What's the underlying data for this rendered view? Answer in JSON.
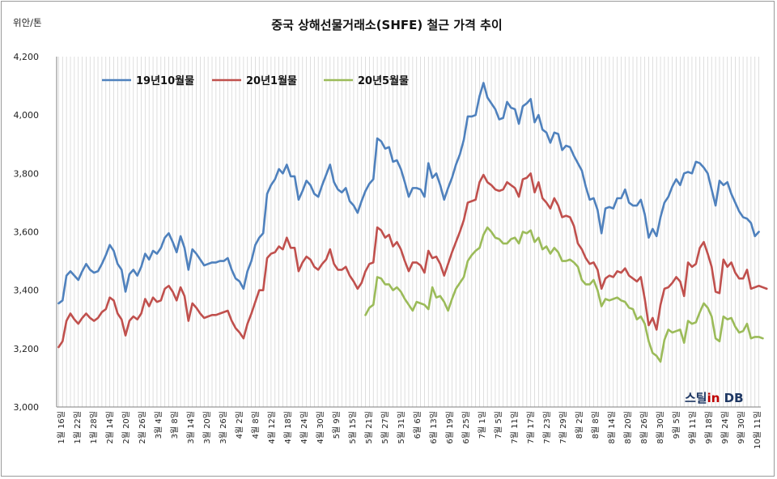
{
  "chart_data": {
    "type": "line",
    "title": "중국 상해선물거래소(SHFE) 철근 가격 추이",
    "unit_label": "위안/톤",
    "ylim": [
      3000,
      4200
    ],
    "yticks": [
      3000,
      3200,
      3400,
      3600,
      3800,
      4000,
      4200
    ],
    "ytick_labels": [
      "3,000",
      "3,200",
      "3,400",
      "3,600",
      "3,800",
      "4,000",
      "4,200"
    ],
    "grid": "vertical lines at every data point",
    "legend_position": "top-left",
    "colors": {
      "s1": "#4f81bd",
      "s2": "#c0504d",
      "s3": "#9bbb59"
    },
    "x_tick_labels": [
      "1월 16일",
      "1월 22일",
      "1월 28일",
      "2월 14일",
      "2월 20일",
      "2월 26일",
      "3월 4일",
      "3월 8일",
      "3월 14일",
      "3월 20일",
      "3월 26일",
      "4월 2일",
      "4월 8일",
      "4월 12일",
      "4월 18일",
      "4월 24일",
      "4월 30일",
      "5월 9일",
      "5월 15일",
      "5월 21일",
      "5월 27일",
      "5월 31일",
      "6월 6일",
      "6월 13일",
      "6월 19일",
      "6월 25일",
      "7월 1일",
      "7월 5일",
      "7월 11일",
      "7월 17일",
      "7월 23일",
      "7월 29일",
      "8월 2일",
      "8월 8일",
      "8월 14일",
      "8월 20일",
      "8월 26일",
      "8월 30일",
      "9월 5일",
      "9월 11일",
      "9월 18일",
      "9월 24일",
      "9월 30일",
      "10월 11일"
    ],
    "series": [
      {
        "name": "19년10월물",
        "values": [
          3355,
          3365,
          3450,
          3465,
          3450,
          3435,
          3465,
          3490,
          3470,
          3460,
          3465,
          3490,
          3520,
          3555,
          3535,
          3490,
          3470,
          3395,
          3455,
          3470,
          3450,
          3480,
          3525,
          3505,
          3535,
          3525,
          3545,
          3580,
          3595,
          3565,
          3530,
          3585,
          3545,
          3470,
          3540,
          3525,
          3505,
          3485,
          3490,
          3495,
          3495,
          3500,
          3500,
          3510,
          3470,
          3440,
          3430,
          3405,
          3465,
          3500,
          3555,
          3580,
          3595,
          3730,
          3760,
          3780,
          3815,
          3800,
          3830,
          3790,
          3790,
          3710,
          3740,
          3775,
          3760,
          3730,
          3720,
          3760,
          3795,
          3830,
          3770,
          3745,
          3735,
          3750,
          3705,
          3690,
          3665,
          3705,
          3740,
          3765,
          3780,
          3920,
          3910,
          3885,
          3890,
          3840,
          3845,
          3815,
          3770,
          3720,
          3750,
          3750,
          3745,
          3720,
          3835,
          3785,
          3800,
          3760,
          3710,
          3750,
          3785,
          3830,
          3865,
          3915,
          3995,
          3995,
          4000,
          4065,
          4110,
          4060,
          4040,
          4020,
          3985,
          3990,
          4045,
          4025,
          4020,
          3970,
          4030,
          4040,
          4055,
          3975,
          4000,
          3950,
          3940,
          3905,
          3940,
          3935,
          3880,
          3895,
          3890,
          3860,
          3835,
          3810,
          3755,
          3710,
          3715,
          3675,
          3595,
          3680,
          3685,
          3680,
          3715,
          3715,
          3745,
          3700,
          3690,
          3690,
          3710,
          3660,
          3580,
          3610,
          3585,
          3650,
          3700,
          3720,
          3755,
          3780,
          3760,
          3800,
          3805,
          3800,
          3840,
          3835,
          3820,
          3800,
          3745,
          3690,
          3775,
          3760,
          3770,
          3730,
          3700,
          3670,
          3650,
          3645,
          3630,
          3585,
          3600
        ]
      },
      {
        "name": "20년1월물",
        "values": [
          3205,
          3225,
          3295,
          3320,
          3300,
          3285,
          3305,
          3320,
          3305,
          3295,
          3305,
          3325,
          3335,
          3375,
          3365,
          3320,
          3300,
          3245,
          3295,
          3310,
          3300,
          3320,
          3370,
          3345,
          3375,
          3360,
          3365,
          3405,
          3415,
          3395,
          3365,
          3410,
          3380,
          3295,
          3355,
          3340,
          3320,
          3305,
          3310,
          3315,
          3315,
          3320,
          3325,
          3330,
          3295,
          3270,
          3255,
          3235,
          3285,
          3320,
          3360,
          3400,
          3400,
          3510,
          3525,
          3530,
          3550,
          3540,
          3580,
          3545,
          3545,
          3465,
          3495,
          3515,
          3505,
          3480,
          3470,
          3490,
          3505,
          3540,
          3490,
          3470,
          3470,
          3480,
          3450,
          3430,
          3405,
          3425,
          3465,
          3490,
          3495,
          3615,
          3605,
          3580,
          3590,
          3550,
          3565,
          3540,
          3500,
          3465,
          3495,
          3495,
          3485,
          3460,
          3535,
          3510,
          3515,
          3490,
          3450,
          3490,
          3530,
          3565,
          3600,
          3640,
          3700,
          3705,
          3710,
          3770,
          3795,
          3770,
          3760,
          3745,
          3740,
          3745,
          3770,
          3760,
          3750,
          3720,
          3780,
          3785,
          3800,
          3735,
          3770,
          3715,
          3700,
          3680,
          3715,
          3690,
          3650,
          3655,
          3650,
          3620,
          3560,
          3540,
          3510,
          3490,
          3495,
          3470,
          3405,
          3440,
          3450,
          3445,
          3465,
          3460,
          3475,
          3450,
          3440,
          3430,
          3445,
          3370,
          3280,
          3305,
          3265,
          3350,
          3405,
          3410,
          3425,
          3445,
          3430,
          3380,
          3495,
          3480,
          3490,
          3545,
          3565,
          3525,
          3480,
          3395,
          3390,
          3505,
          3480,
          3495,
          3460,
          3440,
          3440,
          3470,
          3405,
          3410,
          3415,
          3410,
          3405
        ]
      },
      {
        "name": "20년5월물",
        "values": [
          null,
          null,
          null,
          null,
          null,
          null,
          null,
          null,
          null,
          null,
          null,
          null,
          null,
          null,
          null,
          null,
          null,
          null,
          null,
          null,
          null,
          null,
          null,
          null,
          null,
          null,
          null,
          null,
          null,
          null,
          null,
          null,
          null,
          null,
          null,
          null,
          null,
          null,
          null,
          null,
          null,
          null,
          null,
          null,
          null,
          null,
          null,
          null,
          null,
          null,
          null,
          null,
          null,
          null,
          null,
          null,
          null,
          null,
          null,
          null,
          null,
          null,
          null,
          null,
          null,
          null,
          null,
          null,
          null,
          null,
          null,
          null,
          null,
          null,
          null,
          null,
          null,
          null,
          3315,
          3340,
          3350,
          3445,
          3440,
          3420,
          3420,
          3400,
          3410,
          3395,
          3370,
          3350,
          3330,
          3360,
          3355,
          3350,
          3335,
          3410,
          3375,
          3380,
          3360,
          3330,
          3370,
          3405,
          3425,
          3445,
          3500,
          3520,
          3535,
          3545,
          3590,
          3615,
          3600,
          3580,
          3575,
          3560,
          3560,
          3575,
          3580,
          3560,
          3600,
          3595,
          3605,
          3565,
          3580,
          3540,
          3550,
          3525,
          3545,
          3530,
          3500,
          3500,
          3505,
          3495,
          3480,
          3435,
          3420,
          3420,
          3435,
          3400,
          3345,
          3370,
          3365,
          3370,
          3375,
          3365,
          3360,
          3340,
          3335,
          3300,
          3310,
          3285,
          3225,
          3185,
          3175,
          3155,
          3230,
          3265,
          3255,
          3260,
          3265,
          3220,
          3295,
          3285,
          3290,
          3325,
          3355,
          3340,
          3310,
          3235,
          3225,
          3310,
          3300,
          3305,
          3275,
          3255,
          3260,
          3285,
          3235,
          3240,
          3240,
          3235
        ]
      }
    ]
  },
  "watermark": {
    "part1": "스틸",
    "part2": "in",
    "part3": " DB",
    "colors": {
      "part1": "#1f3864",
      "part2": "#c00000",
      "part3": "#1f3864"
    }
  }
}
